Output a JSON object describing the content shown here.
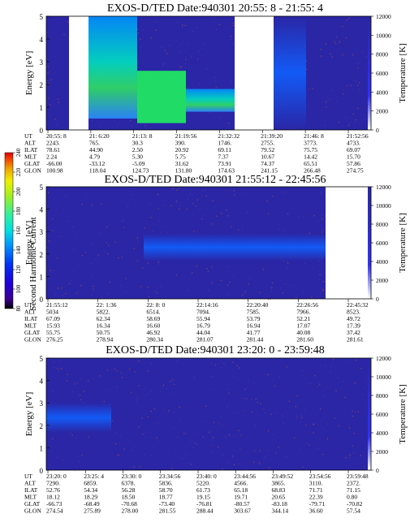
{
  "colors": {
    "background": "#2a26a6",
    "dots": "#b8503a",
    "colorbar": [
      "#000000",
      "#3a0090",
      "#2000d8",
      "#0030f0",
      "#0090ff",
      "#00e0e0",
      "#30f0a0",
      "#a0f020",
      "#f0f000",
      "#f0a000",
      "#f04000",
      "#e00000"
    ]
  },
  "colorbar": {
    "label": "Second Harmonic Current",
    "ticks": [
      "80",
      "100",
      "120",
      "140",
      "160",
      "180",
      "200",
      "220",
      "240"
    ],
    "range": [
      80,
      240
    ]
  },
  "chart_data": [
    {
      "type": "heatmap",
      "title": "EXOS-D/TED   Date:940301  20:55: 8 - 21:55: 4",
      "ylabel": "Energy [eV]",
      "ylabel_right": "Temperature [K]",
      "ylim": [
        0,
        5
      ],
      "yticks": [
        "0",
        "1",
        "2",
        "3",
        "4",
        "5"
      ],
      "ylim_right": [
        0,
        12000
      ],
      "yticks_right": [
        "0",
        "2000",
        "4000",
        "6000",
        "8000",
        "10000",
        "12000"
      ],
      "data_gaps": [
        [
          0.07,
          0.13
        ],
        [
          0.58,
          0.7
        ]
      ],
      "bands": [
        {
          "x": [
            0.13,
            0.28
          ],
          "y": [
            0.5,
            5.0
          ],
          "level": "high"
        },
        {
          "x": [
            0.28,
            0.43
          ],
          "y": [
            0.3,
            2.6
          ],
          "level": "peak"
        },
        {
          "x": [
            0.43,
            0.58
          ],
          "y": [
            0.8,
            1.8
          ],
          "level": "high"
        },
        {
          "x": [
            0.7,
            0.8
          ],
          "y": [
            0.0,
            5.0
          ],
          "level": "medium"
        }
      ],
      "table": {
        "rows": [
          "UT",
          "ALT",
          "ILAT",
          "MLT",
          "GLAT",
          "GLON"
        ],
        "columns": [
          [
            "20:55: 8",
            "2243.",
            "78.61",
            "2.24",
            "-66.00",
            "100.98"
          ],
          [
            "21: 6:20",
            "765.",
            "44.90",
            "4.79",
            "-33.12",
            "118.04"
          ],
          [
            "21:13: 8",
            "30.3",
            "2.50",
            "5.30",
            "-5.09",
            "124.73"
          ],
          [
            "21:19:56",
            "390.",
            "20.92",
            "5.75",
            "31.62",
            "131.80"
          ],
          [
            "21:32:32",
            "1746.",
            "69.11",
            "7.37",
            "73.91",
            "174.63"
          ],
          [
            "21:39:20",
            "2755.",
            "79.52",
            "10.67",
            "74.37",
            "241.15"
          ],
          [
            "21:46: 8",
            "3773.",
            "75.75",
            "14.42",
            "65.51",
            "266.48"
          ],
          [
            "21:52:56",
            "4733.",
            "69.07",
            "15.70",
            "57.86",
            "274.75"
          ]
        ]
      }
    },
    {
      "type": "heatmap",
      "title": "EXOS-D/TED   Date:940301  21:55:12 - 22:45:56",
      "ylabel": "Energy [eV]",
      "ylabel_right": "Temperature [K]",
      "ylim": [
        0,
        5
      ],
      "yticks": [
        "0",
        "1",
        "2",
        "3",
        "4",
        "5"
      ],
      "ylim_right": [
        0,
        12000
      ],
      "yticks_right": [
        "0",
        "2000",
        "4000",
        "6000",
        "8000",
        "10000",
        "12000"
      ],
      "data_gaps": [
        [
          0.86,
          1.0
        ]
      ],
      "bands": [
        {
          "x": [
            0.3,
            0.86
          ],
          "y": [
            1.7,
            2.9
          ],
          "level": "medium"
        }
      ],
      "table": {
        "rows": [
          "UT",
          "ALT",
          "ILAT",
          "MLT",
          "GLAT",
          "GLON"
        ],
        "columns": [
          [
            "21:55:12",
            "5034",
            "67.09",
            "15.93",
            "55.75",
            "276.25"
          ],
          [
            "22: 1:36",
            "5822.",
            "62.34",
            "16.34",
            "50.75",
            "278.94"
          ],
          [
            "22: 8: 0",
            "6514.",
            "58.69",
            "16.60",
            "46.92",
            "280.34"
          ],
          [
            "22:14:16",
            "7094.",
            "55.94",
            "16.79",
            "44.04",
            "281.07"
          ],
          [
            "22:20:40",
            "7585.",
            "53.79",
            "16.94",
            "41.77",
            "281.44"
          ],
          [
            "22:26:56",
            "7966.",
            "52.21",
            "17.07",
            "40.08",
            "281.60"
          ],
          [
            "22:45:32",
            "8523.",
            "49.72",
            "17.39",
            "37.42",
            "281.61"
          ]
        ]
      }
    },
    {
      "type": "heatmap",
      "title": "EXOS-D/TED   Date:940301  23:20: 0 - 23:59:48",
      "ylabel": "Energy [eV]",
      "ylabel_right": "Temperature [K]",
      "ylim": [
        0,
        5
      ],
      "yticks": [
        "0",
        "1",
        "2",
        "3",
        "4",
        "5"
      ],
      "ylim_right": [
        0,
        12000
      ],
      "yticks_right": [
        "0",
        "2000",
        "4000",
        "6000",
        "8000",
        "10000",
        "12000"
      ],
      "data_gaps": [],
      "bands": [
        {
          "x": [
            0.0,
            0.2
          ],
          "y": [
            1.7,
            3.0
          ],
          "level": "medium"
        }
      ],
      "table": {
        "rows": [
          "UT",
          "ALT",
          "ILAT",
          "MLT",
          "GLAT",
          "GLON"
        ],
        "columns": [
          [
            "23:20: 0",
            "7290.",
            "52.76",
            "18.12",
            "-66.73",
            "274.54"
          ],
          [
            "23:25: 4",
            "6859.",
            "54.34",
            "18.29",
            "-68.49",
            "275.89"
          ],
          [
            "23:30: 0",
            "6378.",
            "56.28",
            "18.50",
            "-70.68",
            "278.00"
          ],
          [
            "23:34:56",
            "5836.",
            "58.70",
            "18.77",
            "-73.40",
            "281.55"
          ],
          [
            "23:40: 0",
            "5220.",
            "61.73",
            "19.15",
            "-76.81",
            "288.44"
          ],
          [
            "23:44:56",
            "4566.",
            "65.18",
            "19.71",
            "-80.57",
            "303.67"
          ],
          [
            "23:49:52",
            "3865.",
            "68.83",
            "20.65",
            "-83.18",
            "344.14"
          ],
          [
            "23:54:56",
            "3110.",
            "71.71",
            "22.39",
            "-79.71",
            "36.60"
          ],
          [
            "23:59:48",
            "2372.",
            "71.15",
            "0.80",
            "-70.82",
            "57.54"
          ]
        ]
      }
    }
  ]
}
